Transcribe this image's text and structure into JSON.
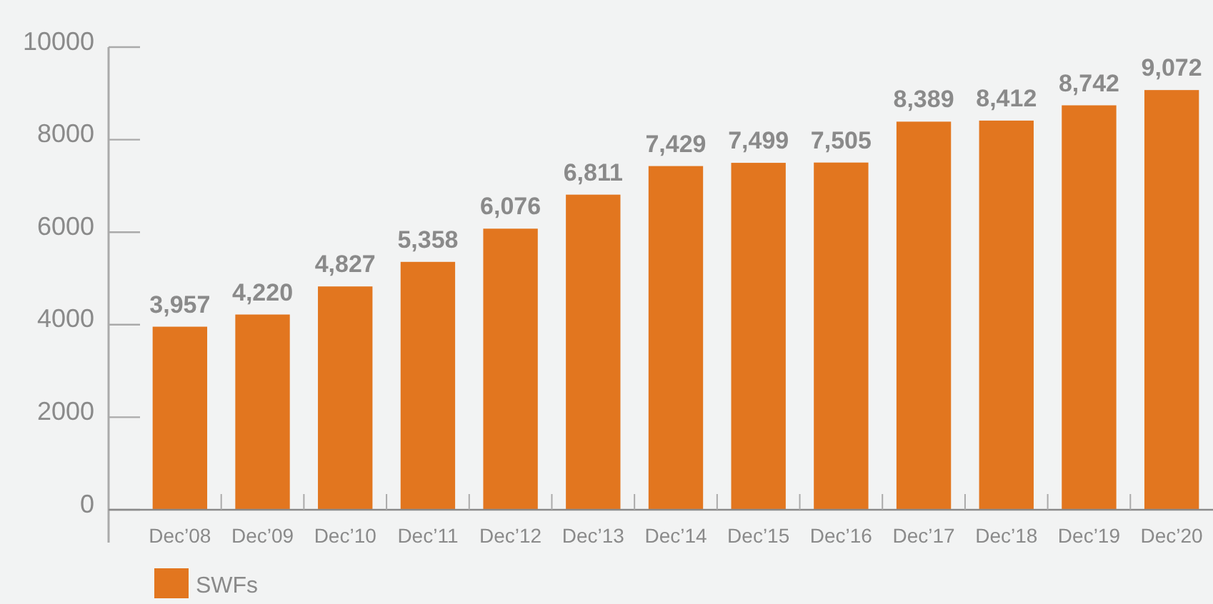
{
  "chart_data": {
    "type": "bar",
    "categories": [
      "Dec’08",
      "Dec’09",
      "Dec’10",
      "Dec’11",
      "Dec’12",
      "Dec’13",
      "Dec’14",
      "Dec’15",
      "Dec’16",
      "Dec’17",
      "Dec’18",
      "Dec’19",
      "Dec’20"
    ],
    "series": [
      {
        "name": "SWFs",
        "color": "#e2761f",
        "values": [
          3957,
          4220,
          4827,
          5358,
          6076,
          6811,
          7429,
          7499,
          7505,
          8389,
          8412,
          8742,
          9072
        ],
        "value_labels": [
          "3,957",
          "4,220",
          "4,827",
          "5,358",
          "6,076",
          "6,811",
          "7,429",
          "7,499",
          "7,505",
          "8,389",
          "8,412",
          "8,742",
          "9,072"
        ]
      }
    ],
    "ylim": [
      0,
      10000
    ],
    "yticks": [
      0,
      2000,
      4000,
      6000,
      8000,
      10000
    ],
    "legend": "bottom left",
    "grid": false
  }
}
